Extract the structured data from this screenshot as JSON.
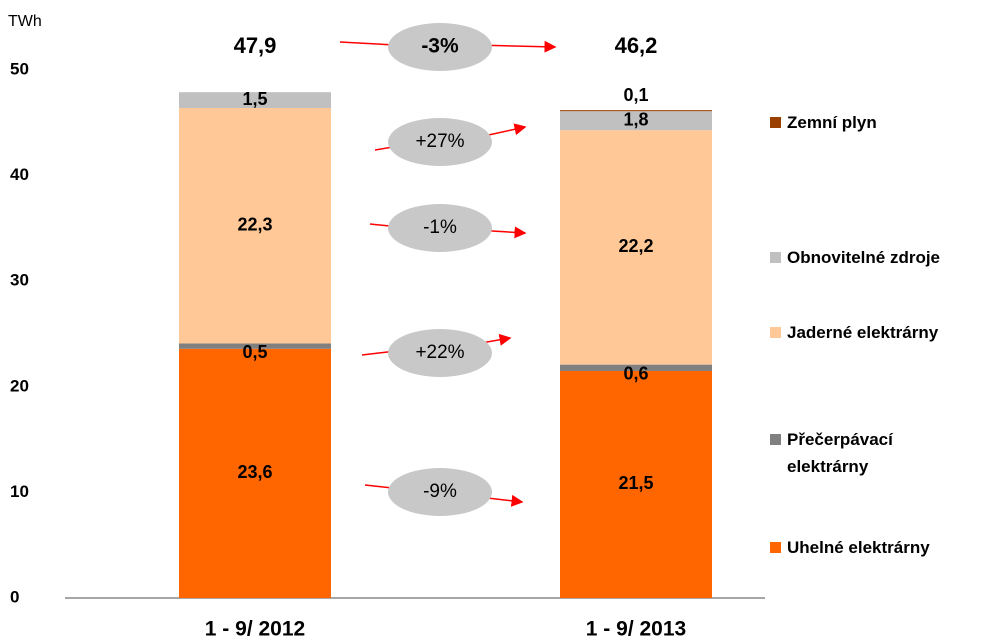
{
  "chart_data": {
    "type": "stacked_bar",
    "unit": "TWh",
    "categories": [
      "1 - 9/ 2012",
      "1 - 9/ 2013"
    ],
    "series": [
      {
        "name": "Uhelné elektrárny",
        "color": "#ff6600",
        "values": [
          23.6,
          21.5
        ],
        "value_labels": [
          "23,6",
          "21,5"
        ]
      },
      {
        "name": "Přečerpávací\nelektrárny",
        "color": "#808080",
        "values": [
          0.5,
          0.6
        ],
        "value_labels": [
          "0,5",
          "0,6"
        ]
      },
      {
        "name": "Jaderné elektrárny",
        "color": "#ffc896",
        "values": [
          22.3,
          22.2
        ],
        "value_labels": [
          "22,3",
          "22,2"
        ]
      },
      {
        "name": "Obnovitelné zdroje",
        "color": "#c0c0c0",
        "values": [
          1.5,
          1.8
        ],
        "value_labels": [
          "1,5",
          "1,8"
        ]
      },
      {
        "name": "Zemní plyn",
        "color": "#994000",
        "values": [
          null,
          0.1
        ],
        "value_labels": [
          null,
          "0,1"
        ]
      }
    ],
    "totals": [
      47.9,
      46.2
    ],
    "total_labels": [
      "47,9",
      "46,2"
    ],
    "annotations": [
      "-3%",
      "+27%",
      "-1%",
      "+22%",
      "-9%"
    ],
    "ylim": [
      0,
      50
    ],
    "yticks": [
      0,
      10,
      20,
      30,
      40,
      50
    ]
  }
}
